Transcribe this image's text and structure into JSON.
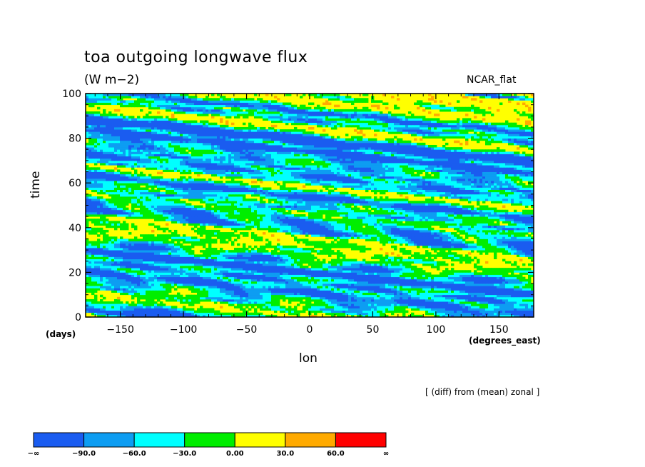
{
  "chart_data": {
    "type": "heatmap",
    "title": "toa outgoing longwave flux",
    "units": "(W m−2)",
    "case_label": "NCAR_flat",
    "xlabel": "lon",
    "xunits": "(degrees_east)",
    "ylabel": "time",
    "yunits": "(days)",
    "xlim": [
      -177.5,
      177.5
    ],
    "ylim": [
      0,
      100
    ],
    "xticks": [
      -150,
      -100,
      -50,
      0,
      50,
      100,
      150
    ],
    "xtick_labels": [
      "−150",
      "−100",
      "−50",
      "0",
      "50",
      "100",
      "150"
    ],
    "yticks": [
      0,
      20,
      40,
      60,
      80,
      100
    ],
    "ytick_labels": [
      "0",
      "20",
      "40",
      "60",
      "80",
      "100"
    ],
    "note": "[ (diff) from (mean) zonal ]",
    "colorbar": {
      "colors": [
        "#1a5cf0",
        "#0d9df2",
        "#00ffff",
        "#00ee00",
        "#ffff00",
        "#ffaa00",
        "#ff0000"
      ],
      "levels": [
        -90,
        -60,
        -30,
        0,
        30,
        60
      ],
      "labels": [
        "−∞",
        "−90.0",
        "−60.0",
        "−30.0",
        "0.00",
        "30.0",
        "60.0",
        "∞"
      ]
    },
    "field_description_levels_present": [
      -90,
      -60,
      -30,
      0,
      30
    ]
  }
}
